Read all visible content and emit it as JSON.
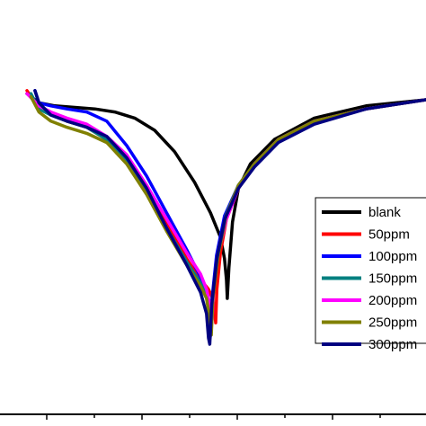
{
  "chart_data": {
    "type": "line",
    "title": "",
    "xlabel": "",
    "ylabel": "",
    "xlim": [
      0,
      100
    ],
    "ylim": [
      0,
      100
    ],
    "grid": false,
    "legend": {
      "placement": "bottom-right"
    },
    "series": [
      {
        "name": "blank",
        "color": "#000000",
        "points": [
          [
            0,
            87
          ],
          [
            3,
            84
          ],
          [
            7,
            83
          ],
          [
            12,
            82.5
          ],
          [
            17,
            82
          ],
          [
            22,
            81
          ],
          [
            27,
            79
          ],
          [
            32,
            75
          ],
          [
            37,
            68
          ],
          [
            42,
            58
          ],
          [
            46,
            48
          ],
          [
            48.5,
            40
          ],
          [
            49.5,
            33
          ],
          [
            50,
            26
          ],
          [
            50.2,
            20
          ],
          [
            50.6,
            30
          ],
          [
            51.5,
            45
          ],
          [
            53,
            56
          ],
          [
            56,
            64
          ],
          [
            62,
            72
          ],
          [
            72,
            79
          ],
          [
            85,
            83
          ],
          [
            100,
            85
          ]
        ]
      },
      {
        "name": "50ppm",
        "color": "#ff0000",
        "points": [
          [
            0,
            88
          ],
          [
            2,
            84
          ],
          [
            5,
            81
          ],
          [
            10,
            78
          ],
          [
            15,
            76
          ],
          [
            20,
            72
          ],
          [
            25,
            66
          ],
          [
            30,
            57
          ],
          [
            35,
            45
          ],
          [
            40,
            33
          ],
          [
            43,
            27
          ],
          [
            45.5,
            23
          ],
          [
            46.5,
            20
          ],
          [
            47,
            16
          ],
          [
            47.3,
            12
          ],
          [
            47.6,
            23
          ],
          [
            48.5,
            35
          ],
          [
            50,
            46
          ],
          [
            53,
            56
          ],
          [
            57,
            64
          ],
          [
            63,
            72
          ],
          [
            72,
            78
          ],
          [
            85,
            82
          ],
          [
            100,
            85
          ]
        ]
      },
      {
        "name": "100ppm",
        "color": "#0000ff",
        "points": [
          [
            2,
            88
          ],
          [
            3,
            84
          ],
          [
            6,
            83
          ],
          [
            10,
            82
          ],
          [
            15,
            81
          ],
          [
            20,
            78
          ],
          [
            25,
            70
          ],
          [
            30,
            60
          ],
          [
            35,
            48
          ],
          [
            40,
            36
          ],
          [
            43.5,
            27
          ],
          [
            45,
            22
          ],
          [
            45.6,
            15
          ],
          [
            45.9,
            7
          ],
          [
            46.3,
            19
          ],
          [
            47.5,
            34
          ],
          [
            49.5,
            47
          ],
          [
            53,
            57
          ],
          [
            57,
            64
          ],
          [
            63,
            72
          ],
          [
            72,
            78
          ],
          [
            85,
            82
          ],
          [
            100,
            85
          ]
        ]
      },
      {
        "name": "150ppm",
        "color": "#008080",
        "points": [
          [
            1,
            87
          ],
          [
            3,
            82
          ],
          [
            6,
            80
          ],
          [
            10,
            78
          ],
          [
            15,
            76
          ],
          [
            20,
            72
          ],
          [
            25,
            65
          ],
          [
            30,
            55
          ],
          [
            35,
            43
          ],
          [
            40,
            32
          ],
          [
            43.5,
            25
          ],
          [
            45,
            21
          ],
          [
            45.7,
            14
          ],
          [
            46.1,
            8
          ],
          [
            46.5,
            20
          ],
          [
            47.8,
            34
          ],
          [
            49.8,
            47
          ],
          [
            53,
            57
          ],
          [
            57,
            64
          ],
          [
            63,
            72
          ],
          [
            72,
            78
          ],
          [
            85,
            82
          ],
          [
            100,
            85
          ]
        ]
      },
      {
        "name": "200ppm",
        "color": "#ff00ff",
        "points": [
          [
            0,
            87
          ],
          [
            3,
            83
          ],
          [
            6,
            81
          ],
          [
            10,
            79
          ],
          [
            15,
            77
          ],
          [
            20,
            73
          ],
          [
            25,
            67
          ],
          [
            30,
            57
          ],
          [
            35,
            46
          ],
          [
            40,
            35
          ],
          [
            43.5,
            28
          ],
          [
            45,
            23
          ],
          [
            46,
            17
          ],
          [
            46.4,
            13
          ],
          [
            46.8,
            23
          ],
          [
            48,
            35
          ],
          [
            50,
            46
          ],
          [
            53,
            56
          ],
          [
            57,
            64
          ],
          [
            63,
            72
          ],
          [
            72,
            78
          ],
          [
            85,
            82
          ],
          [
            100,
            85
          ]
        ]
      },
      {
        "name": "250ppm",
        "color": "#808000",
        "points": [
          [
            1,
            86
          ],
          [
            3,
            81
          ],
          [
            6,
            78
          ],
          [
            10,
            76
          ],
          [
            15,
            74
          ],
          [
            20,
            71
          ],
          [
            25,
            64
          ],
          [
            30,
            54
          ],
          [
            35,
            42
          ],
          [
            40,
            31
          ],
          [
            43.5,
            24
          ],
          [
            45,
            20
          ],
          [
            45.8,
            13
          ],
          [
            46.2,
            8
          ],
          [
            46.6,
            20
          ],
          [
            47.9,
            34
          ],
          [
            49.9,
            47
          ],
          [
            53,
            57
          ],
          [
            57,
            64
          ],
          [
            63,
            72
          ],
          [
            72,
            78
          ],
          [
            85,
            82
          ],
          [
            100,
            85
          ]
        ]
      },
      {
        "name": "300ppm",
        "color": "#000080",
        "points": [
          [
            2,
            88
          ],
          [
            3,
            84
          ],
          [
            6,
            80
          ],
          [
            10,
            78
          ],
          [
            15,
            76
          ],
          [
            20,
            73
          ],
          [
            25,
            66
          ],
          [
            30,
            56
          ],
          [
            35,
            43
          ],
          [
            40,
            31
          ],
          [
            43.5,
            22
          ],
          [
            45,
            15
          ],
          [
            45.5,
            7
          ],
          [
            45.8,
            5
          ],
          [
            46.3,
            18
          ],
          [
            47.6,
            33
          ],
          [
            49.6,
            46
          ],
          [
            53,
            56
          ],
          [
            57,
            63
          ],
          [
            63,
            71
          ],
          [
            72,
            77
          ],
          [
            85,
            82
          ],
          [
            100,
            85
          ]
        ]
      }
    ]
  }
}
